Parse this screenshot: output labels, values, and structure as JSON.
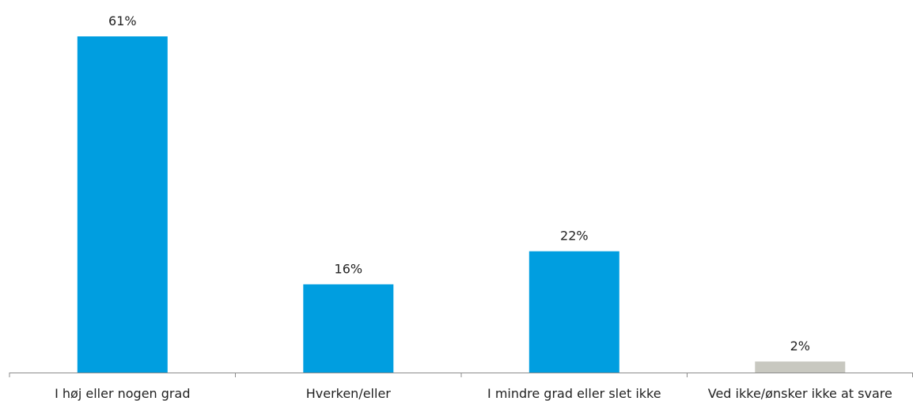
{
  "chart_data": {
    "type": "bar",
    "categories": [
      "I høj eller nogen grad",
      "Hverken/eller",
      "I mindre grad eller slet ikke",
      "Ved ikke/ønsker ikke at svare"
    ],
    "values": [
      61,
      16,
      22,
      2
    ],
    "value_labels": [
      "61%",
      "16%",
      "22%",
      "2%"
    ],
    "bar_colors": [
      "#009ee0",
      "#009ee0",
      "#009ee0",
      "#c8c8c0"
    ],
    "title": "",
    "xlabel": "",
    "ylabel": "",
    "ylim": [
      0,
      61
    ],
    "grid": false,
    "legend": "none"
  }
}
